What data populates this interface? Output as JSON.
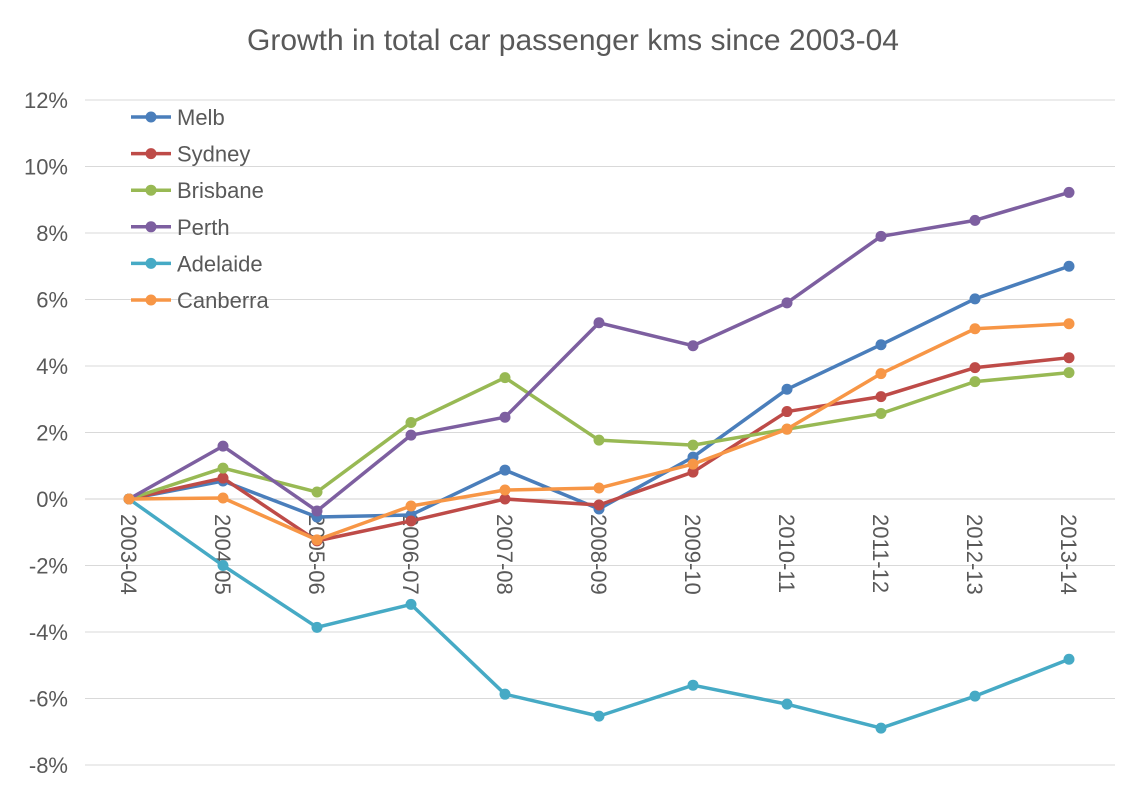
{
  "chart_data": {
    "type": "line",
    "title": "Growth in total car passenger kms since 2003-04",
    "xlabel": "",
    "ylabel": "",
    "ylim": [
      -8,
      12
    ],
    "yticks": [
      -8,
      -6,
      -4,
      -2,
      0,
      2,
      4,
      6,
      8,
      10,
      12
    ],
    "ytick_labels": [
      "-8%",
      "-6%",
      "-4%",
      "-2%",
      "0%",
      "2%",
      "4%",
      "6%",
      "8%",
      "10%",
      "12%"
    ],
    "grid": true,
    "legend_position": "top-left",
    "categories": [
      "2003-04",
      "2004-05",
      "2005-06",
      "2006-07",
      "2007-08",
      "2008-09",
      "2009-10",
      "2010-11",
      "2011-12",
      "2012-13",
      "2013-14"
    ],
    "series": [
      {
        "name": "Melb",
        "color": "#4A7EBB",
        "values": [
          0,
          0.54,
          -0.54,
          -0.48,
          0.87,
          -0.3,
          1.26,
          3.3,
          4.64,
          6.02,
          7.0
        ]
      },
      {
        "name": "Sydney",
        "color": "#BE4B48",
        "values": [
          0,
          0.63,
          -1.26,
          -0.66,
          0,
          -0.18,
          0.81,
          2.63,
          3.08,
          3.95,
          4.25
        ]
      },
      {
        "name": "Brisbane",
        "color": "#98B954",
        "values": [
          0,
          0.93,
          0.21,
          2.3,
          3.65,
          1.77,
          1.62,
          2.1,
          2.57,
          3.53,
          3.8
        ]
      },
      {
        "name": "Perth",
        "color": "#7D5FA0",
        "values": [
          0,
          1.59,
          -0.36,
          1.92,
          2.46,
          5.3,
          4.61,
          5.9,
          7.9,
          8.38,
          9.22
        ]
      },
      {
        "name": "Adelaide",
        "color": "#46AAC5",
        "values": [
          0,
          -2.0,
          -3.86,
          -3.17,
          -5.87,
          -6.53,
          -5.6,
          -6.17,
          -6.89,
          -5.93,
          -4.82
        ]
      },
      {
        "name": "Canberra",
        "color": "#F79646",
        "values": [
          0,
          0.03,
          -1.23,
          -0.21,
          0.27,
          0.33,
          1.05,
          2.1,
          3.77,
          5.12,
          5.27
        ]
      }
    ]
  }
}
